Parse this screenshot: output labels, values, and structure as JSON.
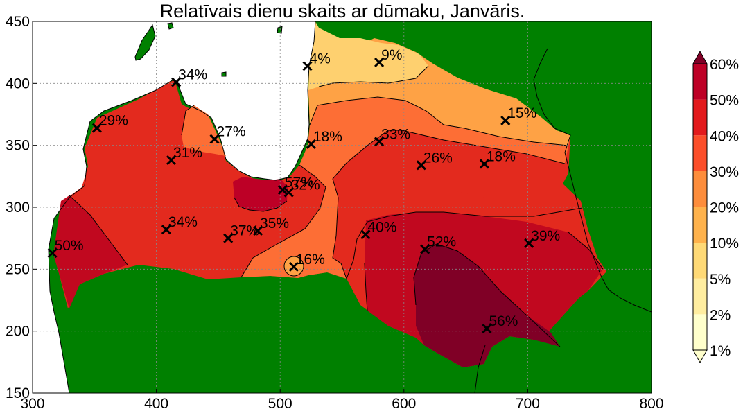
{
  "title": "Relatīvais dienu skaits ar dūmaku, Janvāris.",
  "chart_data": {
    "type": "heatmap",
    "xlim": [
      300,
      800
    ],
    "ylim": [
      150,
      450
    ],
    "x_ticks": [
      "300",
      "400",
      "500",
      "600",
      "700",
      "800"
    ],
    "y_ticks": [
      "150",
      "200",
      "250",
      "300",
      "350",
      "400",
      "450"
    ],
    "grid": true,
    "colorbar": {
      "placement": "right",
      "labels": [
        "1%",
        "2%",
        "5%",
        "10%",
        "20%",
        "30%",
        "40%",
        "50%",
        "60%"
      ],
      "colors": [
        "#ffffcc",
        "#ffeda0",
        "#fed976",
        "#feb24c",
        "#fd8d3c",
        "#fc4e2a",
        "#e31a1c",
        "#bd0026",
        "#800026"
      ]
    },
    "stations": [
      {
        "x": 316,
        "y": 263,
        "label": "50%"
      },
      {
        "x": 352,
        "y": 364,
        "label": "29%"
      },
      {
        "x": 408,
        "y": 282,
        "label": "34%"
      },
      {
        "x": 412,
        "y": 338,
        "label": "31%"
      },
      {
        "x": 416,
        "y": 401,
        "label": "34%"
      },
      {
        "x": 447,
        "y": 355,
        "label": "27%"
      },
      {
        "x": 458,
        "y": 275,
        "label": "37%"
      },
      {
        "x": 482,
        "y": 281,
        "label": "35%"
      },
      {
        "x": 502,
        "y": 314,
        "label": "57%"
      },
      {
        "x": 507,
        "y": 312,
        "label": "32%"
      },
      {
        "x": 511,
        "y": 252,
        "label": "16%"
      },
      {
        "x": 522,
        "y": 414,
        "label": "4%"
      },
      {
        "x": 525,
        "y": 351,
        "label": "18%"
      },
      {
        "x": 569,
        "y": 278,
        "label": "40%"
      },
      {
        "x": 580,
        "y": 417,
        "label": "9%"
      },
      {
        "x": 580,
        "y": 353,
        "label": "33%"
      },
      {
        "x": 614,
        "y": 334,
        "label": "26%"
      },
      {
        "x": 617,
        "y": 266,
        "label": "52%"
      },
      {
        "x": 665,
        "y": 335,
        "label": "18%"
      },
      {
        "x": 667,
        "y": 202,
        "label": "56%"
      },
      {
        "x": 682,
        "y": 370,
        "label": "15%"
      },
      {
        "x": 701,
        "y": 271,
        "label": "39%"
      }
    ]
  },
  "colors": {
    "land": "#008000",
    "sea": "#ffffff",
    "frame": "#000000"
  }
}
